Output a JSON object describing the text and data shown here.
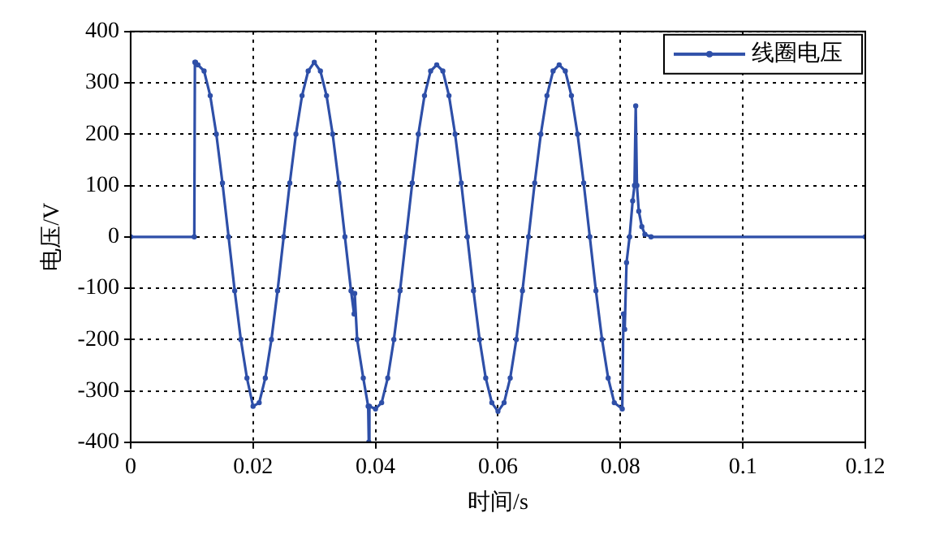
{
  "chart_data": {
    "type": "line",
    "xlabel": "时间/s",
    "ylabel": "电压/V",
    "xlim": [
      0,
      0.12
    ],
    "xticks": [
      0,
      0.02,
      0.04,
      0.06,
      0.08,
      0.1,
      0.12
    ],
    "ylim": [
      -400,
      400
    ],
    "yticks": [
      -400,
      -300,
      -200,
      -100,
      0,
      100,
      200,
      300,
      400
    ],
    "grid": true,
    "legend": "top right",
    "marker": "circle",
    "line_style": "solid",
    "series": [
      {
        "name": "线圈电压",
        "color": "#2e4fa8",
        "x": [
          0,
          0.0104,
          0.0105,
          0.0106,
          0.011,
          0.012,
          0.013,
          0.014,
          0.015,
          0.016,
          0.017,
          0.018,
          0.019,
          0.02,
          0.021,
          0.022,
          0.023,
          0.024,
          0.025,
          0.026,
          0.027,
          0.028,
          0.029,
          0.03,
          0.031,
          0.032,
          0.033,
          0.034,
          0.035,
          0.036,
          0.0365,
          0.0366,
          0.037,
          0.038,
          0.0388,
          0.0389,
          0.039,
          0.04,
          0.041,
          0.042,
          0.043,
          0.044,
          0.045,
          0.046,
          0.047,
          0.048,
          0.049,
          0.05,
          0.051,
          0.052,
          0.053,
          0.054,
          0.055,
          0.056,
          0.057,
          0.058,
          0.059,
          0.06,
          0.061,
          0.062,
          0.063,
          0.064,
          0.065,
          0.066,
          0.067,
          0.068,
          0.069,
          0.07,
          0.071,
          0.072,
          0.073,
          0.074,
          0.075,
          0.076,
          0.077,
          0.078,
          0.079,
          0.0803,
          0.0805,
          0.0807,
          0.081,
          0.0815,
          0.082,
          0.0823,
          0.0825,
          0.0827,
          0.083,
          0.0835,
          0.084,
          0.085,
          0.12
        ],
        "values": [
          0,
          0,
          340,
          340,
          335,
          323,
          275,
          200,
          105,
          0,
          -105,
          -200,
          -275,
          -330,
          -323,
          -275,
          -200,
          -105,
          0,
          105,
          200,
          275,
          323,
          340,
          323,
          275,
          200,
          105,
          0,
          -105,
          -150,
          -110,
          -200,
          -275,
          -330,
          -400,
          -330,
          -335,
          -323,
          -275,
          -200,
          -105,
          0,
          105,
          200,
          275,
          323,
          335,
          323,
          275,
          200,
          105,
          0,
          -105,
          -200,
          -275,
          -323,
          -340,
          -323,
          -275,
          -200,
          -105,
          0,
          105,
          200,
          275,
          323,
          335,
          323,
          275,
          200,
          105,
          0,
          -105,
          -200,
          -275,
          -323,
          -335,
          -150,
          -180,
          -50,
          0,
          70,
          100,
          255,
          100,
          50,
          20,
          5,
          0,
          0
        ]
      }
    ]
  }
}
